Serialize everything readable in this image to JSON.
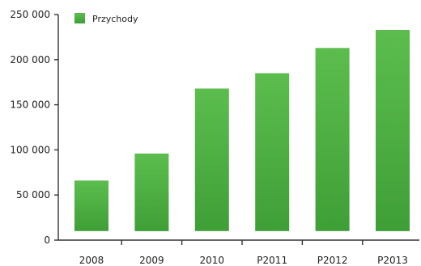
{
  "chart_data": {
    "type": "bar",
    "categories": [
      "2008",
      "2009",
      "2010",
      "P2011",
      "P2012",
      "P2013"
    ],
    "series": [
      {
        "name": "Przychody",
        "values": [
          66000,
          96000,
          168000,
          185000,
          213000,
          233000
        ]
      }
    ],
    "ylim": [
      0,
      250000
    ],
    "yticks": [
      0,
      50000,
      100000,
      150000,
      200000,
      250000
    ],
    "ytick_labels": [
      "0",
      "50 000",
      "100 000",
      "150 000",
      "200 000",
      "250 000"
    ],
    "bar_baseline": 10000,
    "legend_position": "top-left",
    "grid": false,
    "colors": {
      "bar_top": "#5cbd4e",
      "bar_bottom": "#3f9f37",
      "axis": "#333333",
      "text": "#222222"
    }
  }
}
